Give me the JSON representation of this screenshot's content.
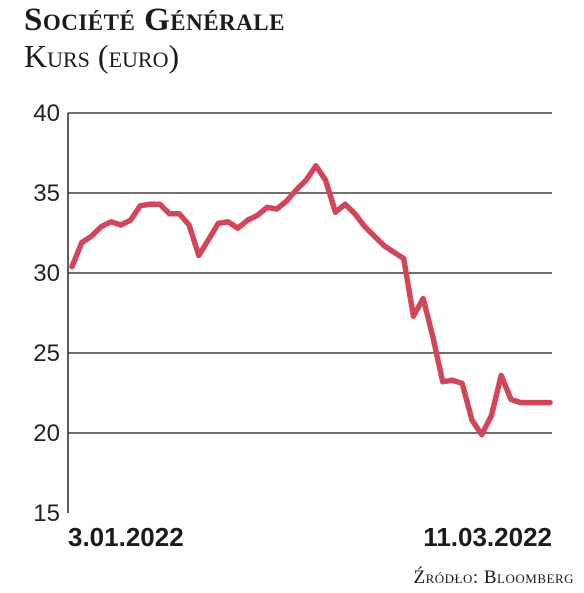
{
  "chart_data": {
    "type": "line",
    "title": "Société Générale",
    "subtitle": "Kurs (euro)",
    "xlabel": "",
    "ylabel": "",
    "ylim": [
      15,
      40
    ],
    "yticks": [
      40,
      35,
      30,
      25,
      20,
      15
    ],
    "xtick_labels": [
      "3.01.2022",
      "11.03.2022"
    ],
    "grid": true,
    "color": "#d2465a",
    "x": [
      "2022-01-03",
      "2022-01-04",
      "2022-01-05",
      "2022-01-06",
      "2022-01-07",
      "2022-01-10",
      "2022-01-11",
      "2022-01-12",
      "2022-01-13",
      "2022-01-14",
      "2022-01-17",
      "2022-01-18",
      "2022-01-19",
      "2022-01-20",
      "2022-01-21",
      "2022-01-24",
      "2022-01-25",
      "2022-01-26",
      "2022-01-27",
      "2022-01-28",
      "2022-01-31",
      "2022-02-01",
      "2022-02-02",
      "2022-02-03",
      "2022-02-04",
      "2022-02-07",
      "2022-02-08",
      "2022-02-09",
      "2022-02-10",
      "2022-02-11",
      "2022-02-14",
      "2022-02-15",
      "2022-02-16",
      "2022-02-17",
      "2022-02-18",
      "2022-02-21",
      "2022-02-22",
      "2022-02-23",
      "2022-02-24",
      "2022-02-25",
      "2022-02-28",
      "2022-03-01",
      "2022-03-02",
      "2022-03-03",
      "2022-03-04",
      "2022-03-07",
      "2022-03-08",
      "2022-03-09",
      "2022-03-10",
      "2022-03-11"
    ],
    "series": [
      {
        "values": [
          30.4,
          31.9,
          32.3,
          32.9,
          33.2,
          33.0,
          33.3,
          34.2,
          34.3,
          34.3,
          33.7,
          33.7,
          33.0,
          31.1,
          32.1,
          33.1,
          33.2,
          32.8,
          33.3,
          33.6,
          34.1,
          34.0,
          34.5,
          35.2,
          35.8,
          36.7,
          35.8,
          33.8,
          34.3,
          33.7,
          32.9,
          32.3,
          31.7,
          31.3,
          30.9,
          27.3,
          28.4,
          26.0,
          23.2,
          23.3,
          23.1,
          20.8,
          19.9,
          21.1,
          23.6,
          22.1,
          21.9,
          21.9,
          21.9,
          21.9
        ]
      }
    ]
  },
  "source_label": "Źródło: Bloomberg"
}
